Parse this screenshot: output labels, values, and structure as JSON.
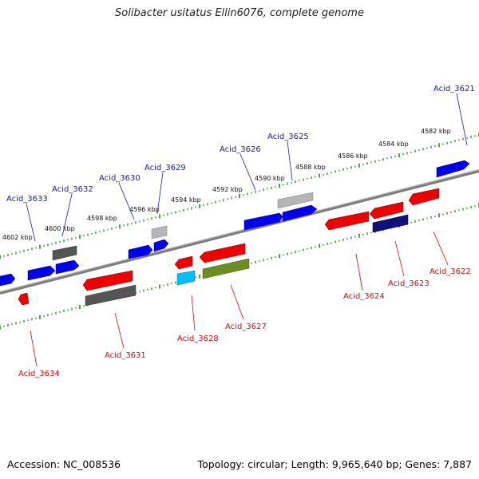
{
  "title": "Solibacter usitatus Ellin6076, complete genome",
  "footer": {
    "accession": "Accession: NC_008536",
    "summary": "Topology: circular; Length: 9,965,640 bp; Genes: 7,887"
  },
  "scale_labels": [
    "4582 kbp",
    "4584 kbp",
    "4586 kbp",
    "4588 kbp",
    "4590 kbp",
    "4592 kbp",
    "4594 kbp",
    "4596 kbp",
    "4598 kbp",
    "4600 kbp",
    "4602 kbp"
  ],
  "forward_gene_labels": [
    "Acid_3621",
    "Acid_3625",
    "Acid_3626",
    "Acid_3629",
    "Acid_3630",
    "Acid_3632",
    "Acid_3633"
  ],
  "reverse_gene_labels": [
    "Acid_3622",
    "Acid_3623",
    "Acid_3624",
    "Acid_3627",
    "Acid_3628",
    "Acid_3631",
    "Acid_3634"
  ],
  "colors": {
    "forward_gene": "#0000ee",
    "reverse_gene": "#ee0000",
    "backbone": "#888888",
    "tick": "#2a8a2a",
    "label_forward": "#1a1aa8",
    "label_reverse": "#cc1111"
  }
}
